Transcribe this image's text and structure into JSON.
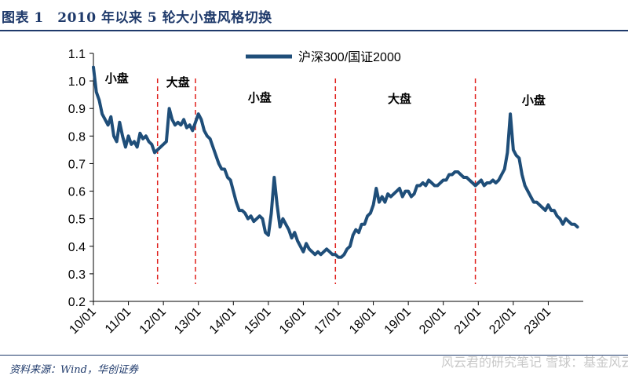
{
  "header": {
    "title": "图表 1　2010 年以来 5 轮大小盘风格切换"
  },
  "footer": {
    "source": "资料来源：Wind，华创证券",
    "watermark": "风云君的研究笔记 雪球：基金风云录"
  },
  "colors": {
    "line": "#1f4e79",
    "regime_divider": "#e0201c",
    "title": "#1f3a6b"
  },
  "chart_data": {
    "type": "line",
    "title": "",
    "xlabel": "",
    "ylabel": "",
    "ylim": [
      0.2,
      1.1
    ],
    "yticks": [
      "0.2",
      "0.3",
      "0.4",
      "0.5",
      "0.6",
      "0.7",
      "0.8",
      "0.9",
      "1.0",
      "1.1"
    ],
    "xticks": [
      "10/01",
      "11/01",
      "12/01",
      "13/01",
      "14/01",
      "15/01",
      "16/01",
      "17/01",
      "18/01",
      "19/01",
      "20/01",
      "21/01",
      "22/01",
      "23/01"
    ],
    "legend": {
      "position": "top-center",
      "entries": [
        "沪深300/国证2000"
      ]
    },
    "series": [
      {
        "name": "沪深300/国证2000",
        "x": [
          "2010-01",
          "2010-02",
          "2010-03",
          "2010-04",
          "2010-05",
          "2010-06",
          "2010-07",
          "2010-08",
          "2010-09",
          "2010-10",
          "2010-11",
          "2010-12",
          "2011-01",
          "2011-02",
          "2011-03",
          "2011-04",
          "2011-05",
          "2011-06",
          "2011-07",
          "2011-08",
          "2011-09",
          "2011-10",
          "2011-11",
          "2011-12",
          "2012-01",
          "2012-02",
          "2012-03",
          "2012-04",
          "2012-05",
          "2012-06",
          "2012-07",
          "2012-08",
          "2012-09",
          "2012-10",
          "2012-11",
          "2012-12",
          "2013-01",
          "2013-02",
          "2013-03",
          "2013-04",
          "2013-05",
          "2013-06",
          "2013-07",
          "2013-08",
          "2013-09",
          "2013-10",
          "2013-11",
          "2013-12",
          "2014-01",
          "2014-02",
          "2014-03",
          "2014-04",
          "2014-05",
          "2014-06",
          "2014-07",
          "2014-08",
          "2014-09",
          "2014-10",
          "2014-11",
          "2014-12",
          "2015-01",
          "2015-02",
          "2015-03",
          "2015-04",
          "2015-05",
          "2015-06",
          "2015-07",
          "2015-08",
          "2015-09",
          "2015-10",
          "2015-11",
          "2015-12",
          "2016-01",
          "2016-02",
          "2016-03",
          "2016-04",
          "2016-05",
          "2016-06",
          "2016-07",
          "2016-08",
          "2016-09",
          "2016-10",
          "2016-11",
          "2016-12",
          "2017-01",
          "2017-02",
          "2017-03",
          "2017-04",
          "2017-05",
          "2017-06",
          "2017-07",
          "2017-08",
          "2017-09",
          "2017-10",
          "2017-11",
          "2017-12",
          "2018-01",
          "2018-02",
          "2018-03",
          "2018-04",
          "2018-05",
          "2018-06",
          "2018-07",
          "2018-08",
          "2018-09",
          "2018-10",
          "2018-11",
          "2018-12",
          "2019-01",
          "2019-02",
          "2019-03",
          "2019-04",
          "2019-05",
          "2019-06",
          "2019-07",
          "2019-08",
          "2019-09",
          "2019-10",
          "2019-11",
          "2019-12",
          "2020-01",
          "2020-02",
          "2020-03",
          "2020-04",
          "2020-05",
          "2020-06",
          "2020-07",
          "2020-08",
          "2020-09",
          "2020-10",
          "2020-11",
          "2020-12",
          "2021-01",
          "2021-02",
          "2021-03",
          "2021-04",
          "2021-05",
          "2021-06",
          "2021-07",
          "2021-08",
          "2021-09",
          "2021-10",
          "2021-11",
          "2021-12",
          "2022-01",
          "2022-02",
          "2022-03",
          "2022-04",
          "2022-05",
          "2022-06",
          "2022-07",
          "2022-08",
          "2022-09",
          "2022-10",
          "2022-11",
          "2022-12",
          "2023-01",
          "2023-02",
          "2023-03",
          "2023-04",
          "2023-05",
          "2023-06",
          "2023-07",
          "2023-08",
          "2023-09",
          "2023-10",
          "2023-11"
        ],
        "values": [
          1.05,
          0.96,
          0.93,
          0.88,
          0.86,
          0.84,
          0.87,
          0.8,
          0.78,
          0.85,
          0.8,
          0.76,
          0.8,
          0.77,
          0.78,
          0.76,
          0.81,
          0.79,
          0.8,
          0.78,
          0.77,
          0.74,
          0.75,
          0.76,
          0.77,
          0.78,
          0.9,
          0.86,
          0.84,
          0.85,
          0.84,
          0.86,
          0.83,
          0.84,
          0.82,
          0.85,
          0.88,
          0.86,
          0.82,
          0.8,
          0.79,
          0.76,
          0.73,
          0.7,
          0.68,
          0.68,
          0.65,
          0.64,
          0.6,
          0.56,
          0.53,
          0.53,
          0.52,
          0.5,
          0.51,
          0.49,
          0.5,
          0.51,
          0.5,
          0.45,
          0.44,
          0.52,
          0.65,
          0.55,
          0.47,
          0.5,
          0.48,
          0.46,
          0.43,
          0.45,
          0.42,
          0.4,
          0.38,
          0.41,
          0.39,
          0.38,
          0.37,
          0.38,
          0.37,
          0.38,
          0.39,
          0.38,
          0.37,
          0.37,
          0.36,
          0.36,
          0.37,
          0.39,
          0.4,
          0.44,
          0.46,
          0.45,
          0.48,
          0.48,
          0.51,
          0.52,
          0.55,
          0.61,
          0.56,
          0.58,
          0.56,
          0.59,
          0.58,
          0.59,
          0.6,
          0.61,
          0.58,
          0.6,
          0.6,
          0.58,
          0.59,
          0.62,
          0.62,
          0.63,
          0.62,
          0.64,
          0.63,
          0.62,
          0.62,
          0.63,
          0.64,
          0.64,
          0.66,
          0.66,
          0.67,
          0.67,
          0.66,
          0.65,
          0.65,
          0.64,
          0.63,
          0.62,
          0.63,
          0.64,
          0.62,
          0.63,
          0.63,
          0.64,
          0.63,
          0.64,
          0.66,
          0.68,
          0.74,
          0.88,
          0.75,
          0.73,
          0.72,
          0.66,
          0.62,
          0.6,
          0.58,
          0.56,
          0.56,
          0.55,
          0.54,
          0.53,
          0.55,
          0.53,
          0.53,
          0.51,
          0.5,
          0.48,
          0.5,
          0.49,
          0.48,
          0.48,
          0.47
        ]
      }
    ],
    "regime_dividers": [
      "2011-11",
      "2012-12",
      "2016-12",
      "2020-12"
    ],
    "regime_labels": [
      {
        "label": "小盘",
        "x": "2010-09",
        "y": 0.995
      },
      {
        "label": "大盘",
        "x": "2012-06",
        "y": 0.98
      },
      {
        "label": "小盘",
        "x": "2014-10",
        "y": 0.925
      },
      {
        "label": "大盘",
        "x": "2018-10",
        "y": 0.92
      },
      {
        "label": "小盘",
        "x": "2022-08",
        "y": 0.915
      }
    ]
  }
}
